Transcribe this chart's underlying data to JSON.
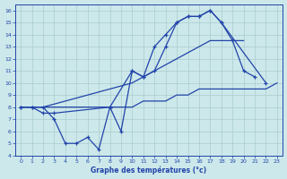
{
  "background_color": "#cce8ea",
  "grid_color": "#aacccc",
  "line_color": "#2244aa",
  "xlabel": "Graphe des températures (°c)",
  "xlim": [
    -0.5,
    23.5
  ],
  "ylim": [
    4,
    16.5
  ],
  "xticks": [
    0,
    1,
    2,
    3,
    4,
    5,
    6,
    7,
    8,
    9,
    10,
    11,
    12,
    13,
    14,
    15,
    16,
    17,
    18,
    19,
    20,
    21,
    22,
    23
  ],
  "yticks": [
    4,
    5,
    6,
    7,
    8,
    9,
    10,
    11,
    12,
    13,
    14,
    15,
    16
  ],
  "line1_x": [
    0,
    1,
    2,
    3,
    4,
    5,
    6,
    7,
    8,
    9,
    10,
    11,
    12,
    13,
    14,
    15,
    16,
    17,
    18,
    19,
    20,
    21
  ],
  "line1_y": [
    8.0,
    8.0,
    8.0,
    7.0,
    5.0,
    5.0,
    5.5,
    4.5,
    8.0,
    6.0,
    11.0,
    10.5,
    13.0,
    14.0,
    15.0,
    15.5,
    15.5,
    16.0,
    15.0,
    13.5,
    11.0,
    10.5
  ],
  "line2_x": [
    0,
    1,
    2,
    3,
    8,
    10,
    11,
    12,
    13,
    14,
    15,
    16,
    17,
    18,
    22
  ],
  "line2_y": [
    8.0,
    8.0,
    7.5,
    7.5,
    8.0,
    11.0,
    10.5,
    11.0,
    13.0,
    15.0,
    15.5,
    15.5,
    16.0,
    15.0,
    10.0
  ],
  "line3_x": [
    0,
    1,
    2,
    10,
    11,
    12,
    13,
    14,
    15,
    16,
    17,
    18,
    19,
    20
  ],
  "line3_y": [
    8.0,
    8.0,
    8.0,
    10.0,
    10.5,
    11.0,
    11.5,
    12.0,
    12.5,
    13.0,
    13.5,
    13.5,
    13.5,
    13.5
  ],
  "line4_x": [
    0,
    10,
    11,
    12,
    13,
    14,
    15,
    16,
    17,
    18,
    19,
    20,
    21,
    22,
    23
  ],
  "line4_y": [
    8.0,
    8.0,
    8.5,
    8.5,
    8.5,
    9.0,
    9.0,
    9.5,
    9.5,
    9.5,
    9.5,
    9.5,
    9.5,
    9.5,
    10.0
  ]
}
